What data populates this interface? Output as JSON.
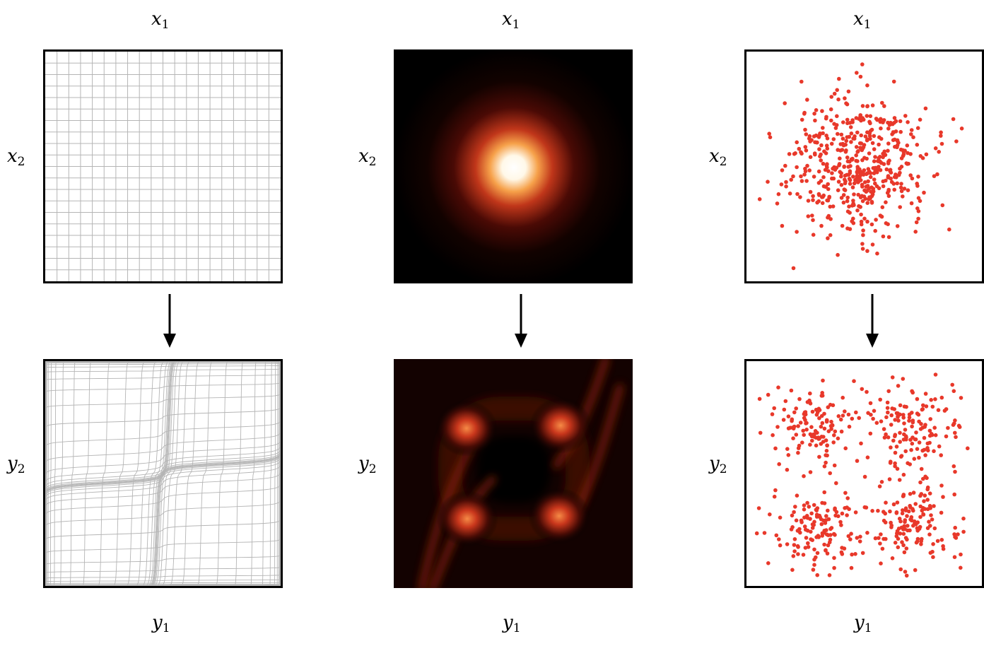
{
  "labels": {
    "x1": {
      "base": "x",
      "sub": "1"
    },
    "x2": {
      "base": "x",
      "sub": "2"
    },
    "y1": {
      "base": "y",
      "sub": "1"
    },
    "y2": {
      "base": "y",
      "sub": "2"
    }
  },
  "columns": [
    {
      "id": "grid",
      "top_title": "x1",
      "bottom_title": "y1",
      "top_side": "x2",
      "bottom_side": "y2"
    },
    {
      "id": "density",
      "top_title": "x1",
      "bottom_title": "y1",
      "top_side": "x2",
      "bottom_side": "y2"
    },
    {
      "id": "samples",
      "top_title": "x1",
      "bottom_title": "y1",
      "top_side": "x2",
      "bottom_side": "y2"
    }
  ],
  "colors": {
    "grid_line": "#b5b5b5",
    "sample_dot": "#e8382a",
    "density_low": "#000000",
    "density_mid": "#c0361a",
    "density_high": "#ffffff",
    "border": "#000000"
  }
}
